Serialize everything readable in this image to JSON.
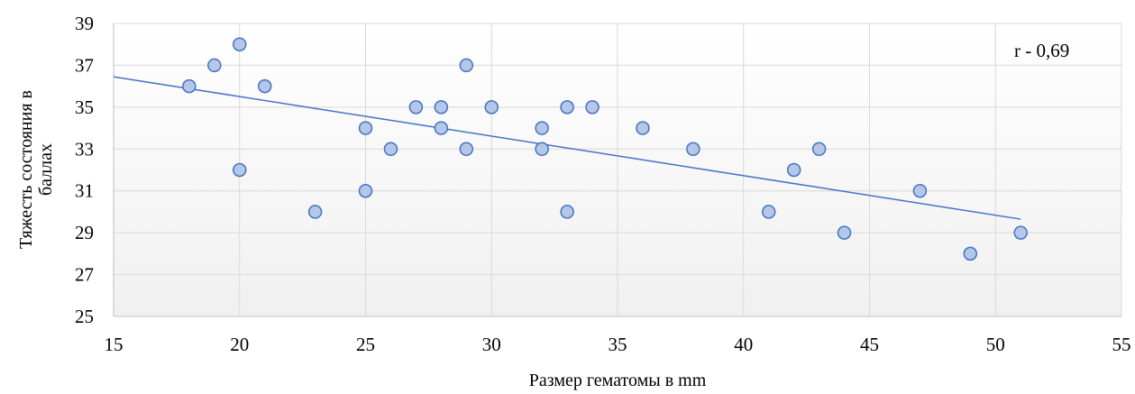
{
  "chart_data": {
    "type": "scatter",
    "title": "",
    "xlabel": "Размер гематомы в mm",
    "ylabel_lines": [
      "Тяжесть состояния в",
      "баллах"
    ],
    "xlim": [
      15,
      55
    ],
    "ylim": [
      25,
      39
    ],
    "xticks": [
      15,
      20,
      25,
      30,
      35,
      40,
      45,
      50,
      55
    ],
    "yticks": [
      25,
      27,
      29,
      31,
      33,
      35,
      37,
      39
    ],
    "grid": true,
    "annotation": "r - 0,69",
    "trendline": {
      "type": "linear",
      "from": [
        15,
        36.45
      ],
      "to": [
        51,
        29.65
      ]
    },
    "colors": {
      "marker_fill": "#b4c7e7",
      "marker_stroke": "#4472c4",
      "trendline": "#4472c4",
      "plot_bg_top": "#ffffff",
      "plot_bg_bottom": "#f0f0f0"
    },
    "points": [
      {
        "x": 18,
        "y": 36
      },
      {
        "x": 19,
        "y": 37
      },
      {
        "x": 20,
        "y": 38
      },
      {
        "x": 20,
        "y": 32
      },
      {
        "x": 21,
        "y": 36
      },
      {
        "x": 23,
        "y": 30
      },
      {
        "x": 25,
        "y": 34
      },
      {
        "x": 25,
        "y": 31
      },
      {
        "x": 26,
        "y": 33
      },
      {
        "x": 27,
        "y": 35
      },
      {
        "x": 28,
        "y": 35
      },
      {
        "x": 28,
        "y": 34
      },
      {
        "x": 29,
        "y": 37
      },
      {
        "x": 29,
        "y": 33
      },
      {
        "x": 30,
        "y": 35
      },
      {
        "x": 32,
        "y": 34
      },
      {
        "x": 32,
        "y": 33
      },
      {
        "x": 33,
        "y": 35
      },
      {
        "x": 33,
        "y": 30
      },
      {
        "x": 34,
        "y": 35
      },
      {
        "x": 36,
        "y": 34
      },
      {
        "x": 38,
        "y": 33
      },
      {
        "x": 41,
        "y": 30
      },
      {
        "x": 42,
        "y": 32
      },
      {
        "x": 43,
        "y": 33
      },
      {
        "x": 44,
        "y": 29
      },
      {
        "x": 47,
        "y": 31
      },
      {
        "x": 49,
        "y": 28
      },
      {
        "x": 51,
        "y": 29
      }
    ]
  }
}
